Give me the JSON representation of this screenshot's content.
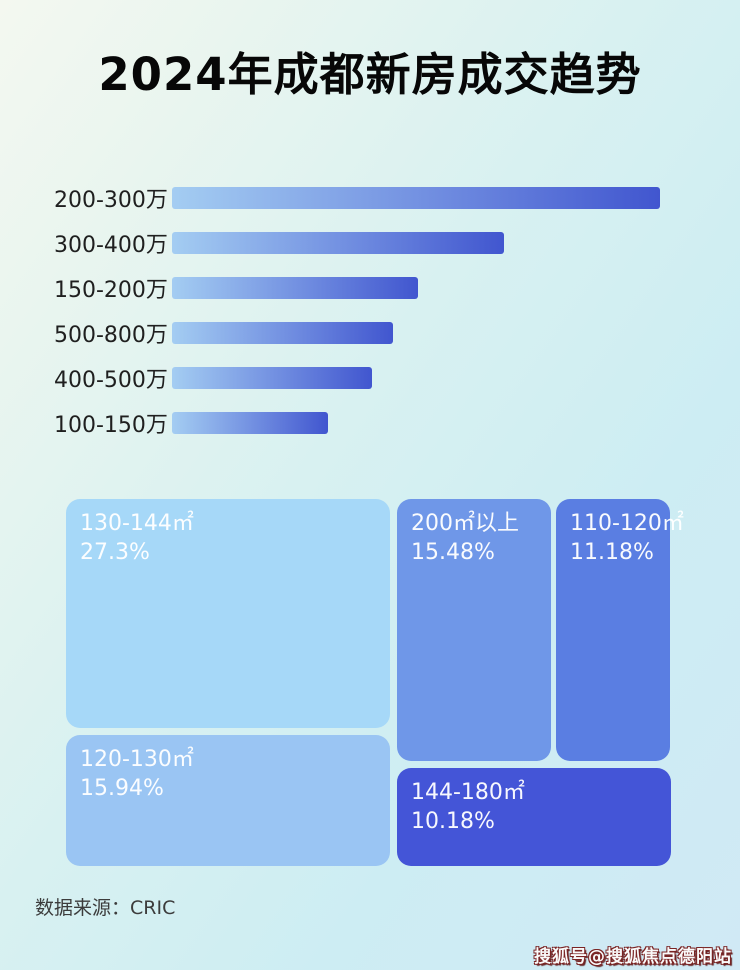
{
  "title": "2024年成都新房成交趋势",
  "bar_chart": {
    "gradient_start": "#a4cdf2",
    "gradient_end": "#4156cf",
    "rows": [
      {
        "label": "200-300万"
      },
      {
        "label": "300-400万"
      },
      {
        "label": "150-200万"
      },
      {
        "label": "500-800万"
      },
      {
        "label": "400-500万"
      },
      {
        "label": "100-150万"
      }
    ]
  },
  "treemap": {
    "text_color": "#ffffff",
    "blocks": [
      {
        "label": "130-144㎡",
        "value": "27.3%",
        "color": "#a6d8f8"
      },
      {
        "label": "120-130㎡",
        "value": "15.94%",
        "color": "#9ac5f3"
      },
      {
        "label": "200㎡以上",
        "value": "15.48%",
        "color": "#6f97e8"
      },
      {
        "label": "110-120㎡",
        "value": "11.18%",
        "color": "#5a7ee2"
      },
      {
        "label": "144-180㎡",
        "value": "10.18%",
        "color": "#4455d7"
      }
    ]
  },
  "footer": {
    "source": "数据来源：CRIC"
  },
  "watermark": "搜狐号@搜狐焦点德阳站",
  "chart_data": [
    {
      "type": "bar",
      "orientation": "horizontal",
      "title": "2024年成都新房成交趋势",
      "categories": [
        "200-300万",
        "300-400万",
        "150-200万",
        "500-800万",
        "400-500万",
        "100-150万"
      ],
      "values_relative_to_longest": [
        1.0,
        0.68,
        0.504,
        0.453,
        0.41,
        0.32
      ],
      "value_labels_shown": false,
      "axes_shown": false,
      "grid": false,
      "legend": "none",
      "bar_color_gradient": [
        "#a4cdf2",
        "#4156cf"
      ],
      "note": "no numeric axis shown; values are bar lengths normalized to the longest bar"
    },
    {
      "type": "treemap",
      "categories": [
        "130-144㎡",
        "120-130㎡",
        "200㎡以上",
        "110-120㎡",
        "144-180㎡"
      ],
      "values": [
        27.3,
        15.94,
        15.48,
        11.18,
        10.18
      ],
      "unit": "%",
      "colors": [
        "#a6d8f8",
        "#9ac5f3",
        "#6f97e8",
        "#5a7ee2",
        "#4455d7"
      ],
      "label_position": "top-left inside block"
    }
  ]
}
